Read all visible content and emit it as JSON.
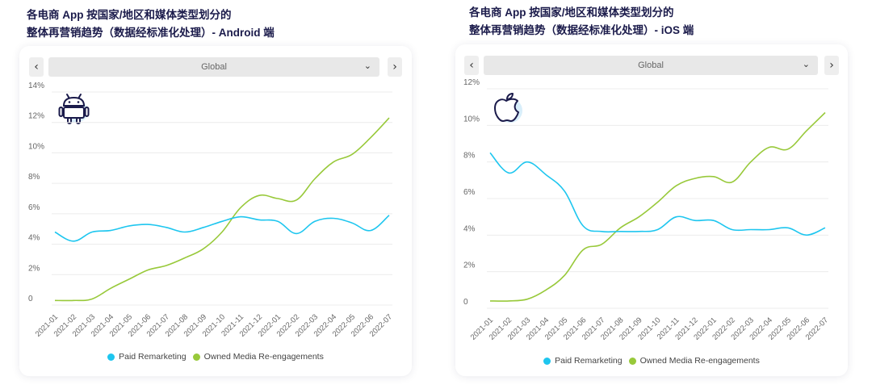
{
  "colors": {
    "paid": "#1ec6ef",
    "owned": "#98c93a",
    "title": "#1b1b4b"
  },
  "panels": [
    {
      "id": "android",
      "title_line1": "各电商 App 按国家/地区和媒体类型划分的",
      "title_line2": "整体再营销趋势（数据经标准化处理）- Android 端",
      "icon": "android-icon",
      "nav_prev": "‹",
      "nav_next": "›",
      "dropdown_value": "Global",
      "dropdown_chevron": "⌄",
      "legend": [
        "Paid Remarketing",
        "Owned Media Re-engagements"
      ]
    },
    {
      "id": "ios",
      "title_line1": "各电商 App 按国家/地区和媒体类型划分的",
      "title_line2": "整体再营销趋势（数据经标准化处理）- iOS 端",
      "icon": "apple-icon",
      "nav_prev": "‹",
      "nav_next": "›",
      "dropdown_value": "Global",
      "dropdown_chevron": "⌄",
      "legend": [
        "Paid Remarketing",
        "Owned Media Re-engagements"
      ]
    }
  ],
  "chart_data": [
    {
      "type": "line",
      "title": "",
      "categories": [
        "2021-01",
        "2021-02",
        "2021-03",
        "2021-04",
        "2021-05",
        "2021-06",
        "2021-07",
        "2021-08",
        "2021-09",
        "2021-10",
        "2021-11",
        "2021-12",
        "2022-01",
        "2022-02",
        "2022-03",
        "2022-04",
        "2022-05",
        "2022-06",
        "2022-07"
      ],
      "yticks": [
        "0",
        "2%",
        "4%",
        "6%",
        "8%",
        "10%",
        "12%",
        "14%"
      ],
      "ylim": [
        0,
        14
      ],
      "legend_position": "bottom",
      "grid": "horizontal",
      "series": [
        {
          "name": "Paid Remarketing",
          "color": "#1ec6ef",
          "values": [
            4.8,
            4.2,
            4.8,
            4.9,
            5.2,
            5.3,
            5.1,
            4.8,
            5.1,
            5.5,
            5.8,
            5.6,
            5.5,
            4.7,
            5.5,
            5.7,
            5.4,
            4.9,
            5.9
          ]
        },
        {
          "name": "Owned Media Re-engagements",
          "color": "#98c93a",
          "values": [
            0.3,
            0.3,
            0.4,
            1.1,
            1.7,
            2.3,
            2.6,
            3.1,
            3.7,
            4.8,
            6.4,
            7.2,
            7.0,
            6.9,
            8.3,
            9.4,
            9.9,
            11.0,
            12.3
          ]
        }
      ]
    },
    {
      "type": "line",
      "title": "",
      "categories": [
        "2021-01",
        "2021-02",
        "2021-03",
        "2021-04",
        "2021-05",
        "2021-06",
        "2021-07",
        "2021-08",
        "2021-09",
        "2021-10",
        "2021-11",
        "2021-12",
        "2022-01",
        "2022-02",
        "2022-03",
        "2022-04",
        "2022-05",
        "2022-06",
        "2022-07"
      ],
      "yticks": [
        "0",
        "2%",
        "4%",
        "6%",
        "8%",
        "10%",
        "12%"
      ],
      "ylim": [
        0,
        12
      ],
      "legend_position": "bottom",
      "grid": "horizontal",
      "series": [
        {
          "name": "Paid Remarketing",
          "color": "#1ec6ef",
          "values": [
            8.5,
            7.4,
            8.0,
            7.3,
            6.4,
            4.5,
            4.2,
            4.2,
            4.2,
            4.3,
            5.0,
            4.8,
            4.8,
            4.3,
            4.3,
            4.3,
            4.4,
            4.0,
            4.4
          ]
        },
        {
          "name": "Owned Media Re-engagements",
          "color": "#98c93a",
          "values": [
            0.4,
            0.4,
            0.5,
            1.0,
            1.8,
            3.2,
            3.5,
            4.4,
            5.0,
            5.8,
            6.7,
            7.1,
            7.2,
            6.9,
            8.0,
            8.8,
            8.7,
            9.7,
            10.7
          ]
        }
      ]
    }
  ]
}
